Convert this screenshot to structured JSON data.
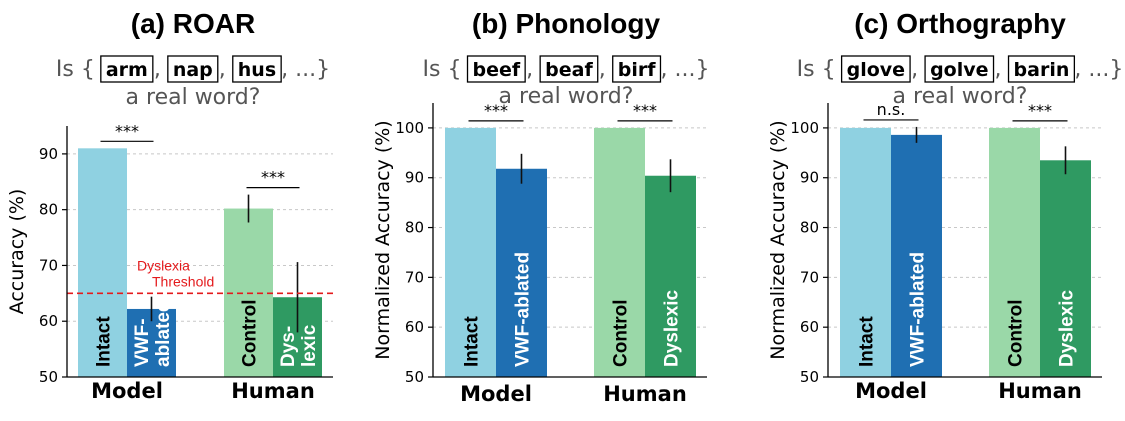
{
  "colors": {
    "intact": "#8fd1e1",
    "ablated": "#1f6fb2",
    "control": "#9ad8a8",
    "dyslexic": "#2f9a62",
    "threshold": "#e41a1c",
    "grid": "#c8c8c8"
  },
  "chart_data": [
    {
      "type": "bar",
      "title": "(a) ROAR",
      "prompt": {
        "prefix": "Is {",
        "words": [
          "arm",
          "nap",
          "hus"
        ],
        "suffix": ", ...}",
        "line2": "a real word?"
      },
      "ylabel": "Accuracy (%)",
      "ylim": [
        50,
        95
      ],
      "yticks": [
        50,
        60,
        70,
        80,
        90
      ],
      "grid": true,
      "groups": [
        {
          "name": "Model",
          "sig": "***",
          "bars": [
            {
              "label": "Intact",
              "value": 91.0,
              "err": null,
              "color": "intact"
            },
            {
              "label": "VWF-ablated",
              "lines": [
                "VWF-",
                "ablated"
              ],
              "value": 62.2,
              "err": 2.2,
              "color": "ablated"
            }
          ]
        },
        {
          "name": "Human",
          "sig": "***",
          "bars": [
            {
              "label": "Control",
              "value": 80.2,
              "err": 2.5,
              "color": "control"
            },
            {
              "label": "Dyslexic",
              "lines": [
                "Dys-",
                "lexic"
              ],
              "value": 64.3,
              "err": 6.3,
              "color": "dyslexic"
            }
          ]
        }
      ],
      "threshold": {
        "value": 65,
        "label_line1": "Dyslexia",
        "label_line2": "Threshold"
      }
    },
    {
      "type": "bar",
      "title": "(b) Phonology",
      "prompt": {
        "prefix": "Is {",
        "words": [
          "beef",
          "beaf",
          "birf"
        ],
        "suffix": ", ...}",
        "line2": "a real word?"
      },
      "ylabel": "Normalized Accuracy (%)",
      "ylim": [
        50,
        105
      ],
      "yticks": [
        50,
        60,
        70,
        80,
        90,
        100
      ],
      "grid": true,
      "groups": [
        {
          "name": "Model",
          "sig": "***",
          "bars": [
            {
              "label": "Intact",
              "value": 100.0,
              "err": null,
              "color": "intact"
            },
            {
              "label": "VWF-ablated",
              "lines": [
                "VWF-ablated"
              ],
              "value": 91.8,
              "err": 3.0,
              "color": "ablated"
            }
          ]
        },
        {
          "name": "Human",
          "sig": "***",
          "bars": [
            {
              "label": "Control",
              "value": 100.0,
              "err": null,
              "color": "control"
            },
            {
              "label": "Dyslexic",
              "lines": [
                "Dyslexic"
              ],
              "value": 90.4,
              "err": 3.3,
              "color": "dyslexic"
            }
          ]
        }
      ]
    },
    {
      "type": "bar",
      "title": "(c) Orthography",
      "prompt": {
        "prefix": "Is {",
        "words": [
          "glove",
          "golve",
          "barin"
        ],
        "suffix": ", ...}",
        "line2": "a real word?"
      },
      "ylabel": "Normalized Accuracy (%)",
      "ylim": [
        50,
        105
      ],
      "yticks": [
        50,
        60,
        70,
        80,
        90,
        100
      ],
      "grid": true,
      "groups": [
        {
          "name": "Model",
          "sig": "n.s.",
          "bars": [
            {
              "label": "Intact",
              "value": 100.0,
              "err": null,
              "color": "intact"
            },
            {
              "label": "VWF-ablated",
              "lines": [
                "VWF-ablated"
              ],
              "value": 98.6,
              "err": 1.6,
              "color": "ablated"
            }
          ]
        },
        {
          "name": "Human",
          "sig": "***",
          "bars": [
            {
              "label": "Control",
              "value": 100.0,
              "err": null,
              "color": "control"
            },
            {
              "label": "Dyslexic",
              "lines": [
                "Dyslexic"
              ],
              "value": 93.5,
              "err": 2.8,
              "color": "dyslexic"
            }
          ]
        }
      ]
    }
  ]
}
